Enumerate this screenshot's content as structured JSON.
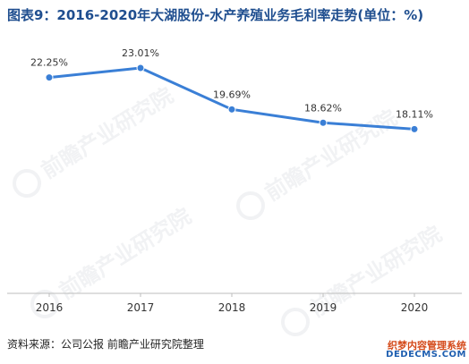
{
  "title": "图表9：2016-2020年大湖股份-水产养殖业务毛利率走势(单位：%)",
  "source": "资料来源：公司公报 前瞻产业研究院整理",
  "watermark": {
    "brand": "前瞻产业研究院",
    "corner_line1": "织梦内容管理系统",
    "corner_line2": "DEDECMS.COM"
  },
  "colors": {
    "title": "#1f4e8f",
    "line": "#3a7fd6",
    "axis": "#bdbdbd",
    "label": "#333333"
  },
  "chart_data": {
    "type": "line",
    "title": "图表9：2016-2020年大湖股份-水产养殖业务毛利率走势(单位：%)",
    "xlabel": "",
    "ylabel": "",
    "ylim": [
      0,
      25
    ],
    "grid": false,
    "legend": "none",
    "categories": [
      "2016",
      "2017",
      "2018",
      "2019",
      "2020"
    ],
    "series": [
      {
        "name": "",
        "values": [
          22.25,
          23.01,
          19.69,
          18.62,
          18.11
        ],
        "labels": [
          "22.25%",
          "23.01%",
          "19.69%",
          "18.62%",
          "18.11%"
        ]
      }
    ]
  }
}
